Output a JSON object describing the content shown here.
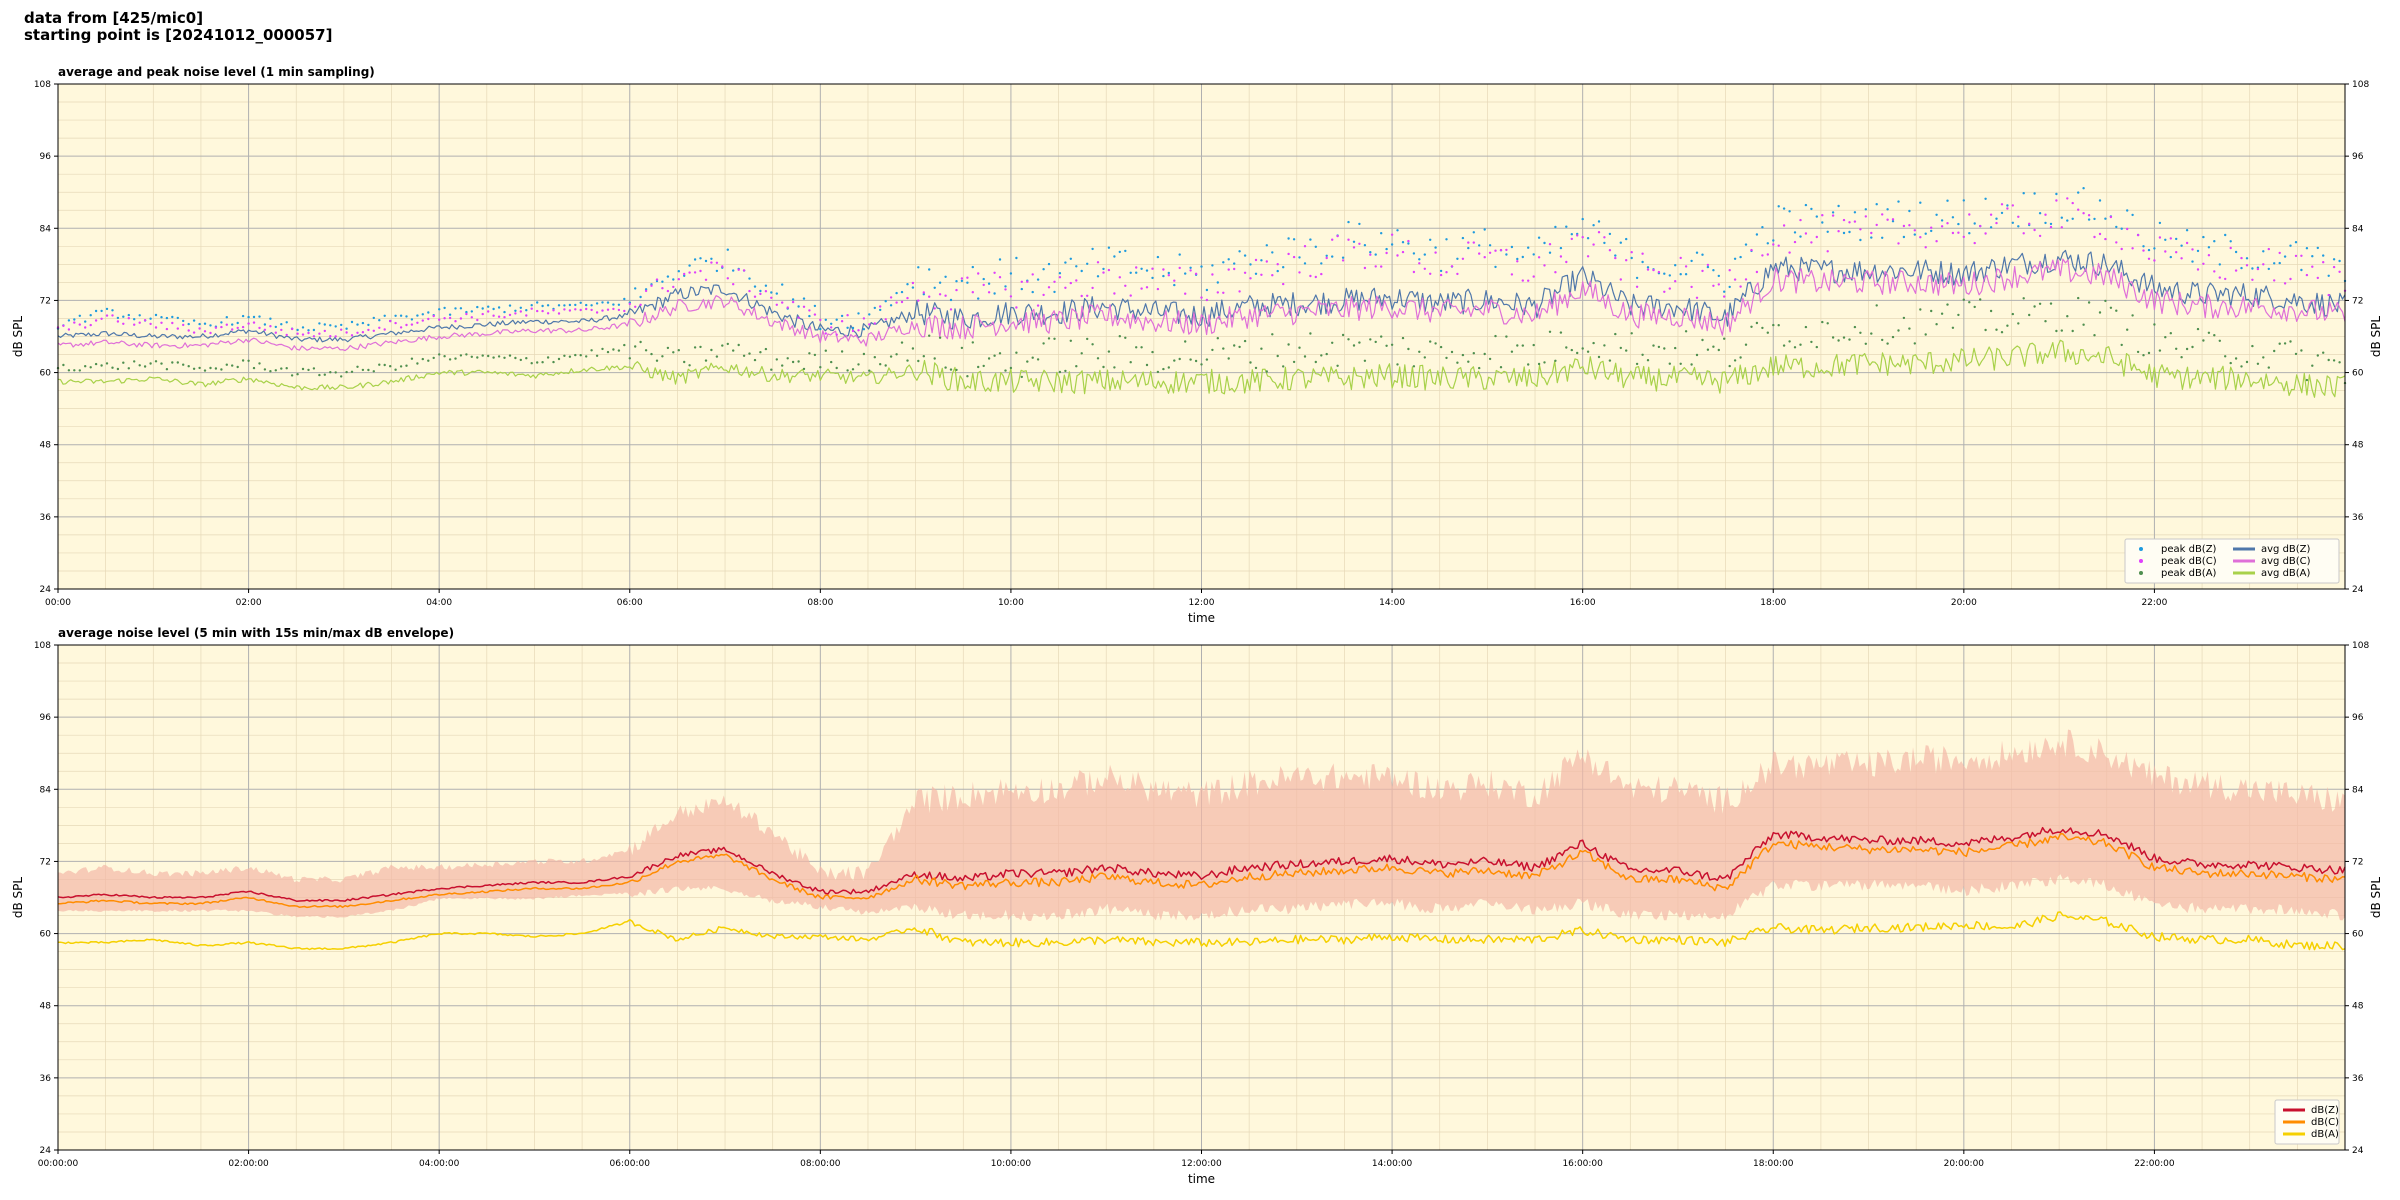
{
  "header": {
    "line1": "data from [425/mic0]",
    "line2": "starting point is [20241012_000057]"
  },
  "colors": {
    "plot_bg": "#fff8dc",
    "major_grid": "#b0b0b0",
    "minor_grid": "#e6d9b8",
    "peak_z": "#1f9bde",
    "peak_c": "#e040fb",
    "peak_a": "#4f8f4f",
    "avg_z": "#4f77aa",
    "avg_c": "#df6fd8",
    "avg_a": "#a8d14a",
    "envelope": "#f3b8a6",
    "db_z": "#c8102e",
    "db_c": "#ff8c00",
    "db_a": "#f5d000"
  },
  "chart_data": [
    {
      "type": "line",
      "title": "average and peak noise level (1 min sampling)",
      "xlabel": "time",
      "ylabel": "dB SPL",
      "ylim": [
        24,
        108
      ],
      "xlim_hours": [
        0,
        24
      ],
      "yticks": [
        24,
        36,
        48,
        60,
        72,
        84,
        96,
        108
      ],
      "xtick_labels": [
        "00:00",
        "02:00",
        "04:00",
        "06:00",
        "08:00",
        "10:00",
        "12:00",
        "14:00",
        "16:00",
        "18:00",
        "20:00",
        "22:00"
      ],
      "grid": true,
      "legend_position": "lower-right",
      "legend": [
        {
          "label": "peak dB(Z)",
          "kind": "dot",
          "color_key": "peak_z"
        },
        {
          "label": "peak dB(C)",
          "kind": "dot",
          "color_key": "peak_c"
        },
        {
          "label": "peak dB(A)",
          "kind": "dot",
          "color_key": "peak_a"
        },
        {
          "label": "avg dB(Z)",
          "kind": "line",
          "color_key": "avg_z"
        },
        {
          "label": "avg dB(C)",
          "kind": "line",
          "color_key": "avg_c"
        },
        {
          "label": "avg dB(A)",
          "kind": "line",
          "color_key": "avg_a"
        }
      ],
      "x_hours": [
        0,
        0.5,
        1,
        1.5,
        2,
        2.5,
        3,
        3.5,
        4,
        4.5,
        5,
        5.5,
        6,
        6.5,
        7,
        7.5,
        8,
        8.5,
        9,
        9.5,
        10,
        10.5,
        11,
        11.5,
        12,
        12.5,
        13,
        13.5,
        14,
        14.5,
        15,
        15.5,
        16,
        16.5,
        17,
        17.5,
        18,
        18.5,
        19,
        19.5,
        20,
        20.5,
        21,
        21.5,
        22,
        22.5,
        23,
        23.5,
        24
      ],
      "series": [
        {
          "name": "avg dB(Z)",
          "color_key": "avg_z",
          "style": "line",
          "values": [
            66,
            66.5,
            66,
            66,
            67,
            65.5,
            65.5,
            66.5,
            67.5,
            68,
            68.5,
            68.5,
            69.5,
            73,
            74,
            70,
            67,
            67,
            70,
            69,
            70,
            70,
            71,
            70,
            69.5,
            71,
            71.5,
            72,
            72.5,
            71.5,
            72,
            71,
            76,
            71,
            71,
            69,
            77.5,
            77,
            77,
            77,
            76.5,
            78,
            79,
            78,
            74,
            73,
            73,
            72,
            71
          ]
        },
        {
          "name": "avg dB(C)",
          "color_key": "avg_c",
          "style": "line",
          "values": [
            64.5,
            65,
            64.5,
            64.5,
            65.5,
            64,
            64,
            65,
            66,
            66.5,
            67,
            67,
            68,
            71,
            72,
            68.5,
            66,
            65.5,
            68,
            67.5,
            68.5,
            68.5,
            69.5,
            68.5,
            68,
            69.5,
            70,
            70.5,
            71,
            70,
            70.5,
            69.5,
            74,
            69.5,
            69.5,
            68,
            75.5,
            75,
            75,
            75,
            74.5,
            76,
            77,
            76,
            72,
            71,
            71,
            70.5,
            69.5
          ]
        },
        {
          "name": "avg dB(A)",
          "color_key": "avg_a",
          "style": "line",
          "values": [
            58.5,
            58.5,
            59,
            58,
            59,
            57.5,
            57.5,
            58.5,
            60,
            60,
            59.5,
            60.5,
            61,
            59,
            61,
            59.5,
            59.5,
            59,
            60.5,
            58.5,
            58.5,
            58.5,
            58.5,
            58.5,
            58.5,
            58.5,
            59,
            59,
            59.5,
            59,
            59,
            59,
            61,
            59,
            59,
            58.5,
            61,
            61,
            61.5,
            61.5,
            62,
            62.5,
            63.5,
            62.5,
            59.5,
            59,
            59,
            58,
            57.5
          ]
        },
        {
          "name": "peak dB(Z)",
          "color_key": "peak_z",
          "style": "dots",
          "values": [
            68,
            70,
            69,
            68,
            69,
            67.5,
            67.5,
            69,
            70,
            70.5,
            71,
            71,
            72,
            77,
            79,
            74,
            69,
            69,
            76,
            75,
            76,
            76,
            78,
            77,
            76,
            79,
            80,
            82,
            82,
            80,
            81,
            79,
            84,
            79,
            78,
            76,
            85,
            85,
            85,
            86,
            86,
            87,
            88,
            87,
            82,
            80,
            80,
            79,
            77
          ]
        },
        {
          "name": "peak dB(C)",
          "color_key": "peak_c",
          "style": "dots",
          "values": [
            67,
            69,
            68,
            67,
            68,
            66.5,
            66.5,
            68,
            69,
            69.5,
            70,
            70,
            71,
            76,
            77,
            72.5,
            68,
            68,
            74,
            73,
            74,
            74,
            76,
            75,
            74,
            77,
            78,
            80,
            80,
            78,
            79,
            77,
            82,
            77,
            76,
            74,
            83,
            83,
            83,
            84,
            84,
            85,
            86,
            85,
            80,
            78,
            78,
            77,
            75
          ]
        },
        {
          "name": "peak dB(A)",
          "color_key": "peak_a",
          "style": "dots",
          "values": [
            61,
            61,
            61.5,
            60.5,
            61.5,
            60,
            60,
            61,
            62.5,
            62.5,
            62,
            63,
            64,
            62,
            64,
            62,
            62,
            62,
            64,
            62,
            62,
            63,
            63,
            63,
            63,
            63,
            64,
            64,
            64,
            63,
            64,
            63,
            66,
            64,
            64,
            63,
            67,
            67,
            68,
            68,
            69,
            69,
            70,
            69,
            65,
            64,
            64,
            62,
            61
          ]
        }
      ]
    },
    {
      "type": "line",
      "title": "average noise level (5 min with 15s min/max dB envelope)",
      "xlabel": "time",
      "ylabel": "dB SPL",
      "ylim": [
        24,
        108
      ],
      "xlim_hours": [
        0,
        24
      ],
      "yticks": [
        24,
        36,
        48,
        60,
        72,
        84,
        96,
        108
      ],
      "xtick_labels": [
        "00:00:00",
        "02:00:00",
        "04:00:00",
        "06:00:00",
        "08:00:00",
        "10:00:00",
        "12:00:00",
        "14:00:00",
        "16:00:00",
        "18:00:00",
        "20:00:00",
        "22:00:00"
      ],
      "grid": true,
      "legend_position": "lower-right",
      "legend": [
        {
          "label": "dB(Z)",
          "kind": "line",
          "color_key": "db_z"
        },
        {
          "label": "dB(C)",
          "kind": "line",
          "color_key": "db_c"
        },
        {
          "label": "dB(A)",
          "kind": "line",
          "color_key": "db_a"
        }
      ],
      "x_hours": [
        0,
        0.5,
        1,
        1.5,
        2,
        2.5,
        3,
        3.5,
        4,
        4.5,
        5,
        5.5,
        6,
        6.5,
        7,
        7.5,
        8,
        8.5,
        9,
        9.5,
        10,
        10.5,
        11,
        11.5,
        12,
        12.5,
        13,
        13.5,
        14,
        14.5,
        15,
        15.5,
        16,
        16.5,
        17,
        17.5,
        18,
        18.5,
        19,
        19.5,
        20,
        20.5,
        21,
        21.5,
        22,
        22.5,
        23,
        23.5,
        24
      ],
      "envelope": {
        "name": "min/max envelope",
        "color_key": "envelope",
        "upper": [
          70,
          71,
          70,
          70,
          71,
          69,
          69,
          71,
          71,
          71.5,
          72,
          72,
          74,
          80,
          82,
          77,
          70,
          70,
          82,
          83,
          84,
          84,
          86,
          84,
          83,
          85,
          86,
          86,
          86,
          84,
          85,
          83,
          90,
          84,
          84,
          82,
          88,
          88,
          88,
          89,
          89,
          90,
          92,
          90,
          86,
          85,
          84,
          83,
          82
        ],
        "lower": [
          64,
          64,
          64,
          64,
          64,
          63,
          63,
          64,
          66,
          66,
          66,
          66.5,
          67,
          68,
          68,
          66,
          65,
          64,
          65,
          64,
          64,
          64,
          65,
          64,
          64,
          65,
          65,
          66,
          66,
          65,
          66,
          65,
          66,
          64,
          64,
          64,
          69,
          69,
          69,
          69,
          68,
          69,
          70,
          69,
          66,
          65,
          65,
          65,
          64
        ]
      },
      "series": [
        {
          "name": "dB(Z)",
          "color_key": "db_z",
          "style": "line",
          "values": [
            66,
            66.5,
            66,
            66,
            67,
            65.5,
            65.5,
            66.5,
            67.5,
            68,
            68.5,
            68.5,
            69.5,
            73,
            74,
            70,
            67,
            67,
            70,
            69,
            70,
            70,
            71,
            70,
            69.5,
            71,
            71.5,
            72,
            72.5,
            71.5,
            72,
            71,
            75,
            70.5,
            70.5,
            69,
            76.5,
            76,
            75.5,
            75.5,
            75,
            76,
            77.5,
            76.5,
            72.5,
            71.5,
            71.5,
            71,
            70.5
          ]
        },
        {
          "name": "dB(C)",
          "color_key": "db_c",
          "style": "line",
          "values": [
            65,
            65.5,
            65,
            65,
            66,
            64.5,
            64.5,
            65.5,
            66.5,
            67,
            67.5,
            67.5,
            68.5,
            72,
            73,
            69,
            66,
            66,
            69,
            68,
            68.5,
            68.5,
            69.5,
            68.5,
            68,
            69.5,
            70,
            70.5,
            71,
            70,
            70.5,
            69.5,
            73.5,
            69,
            69,
            67.5,
            75,
            74.5,
            74,
            74,
            73.5,
            74.5,
            76,
            75,
            71,
            70,
            70,
            69.5,
            69
          ]
        },
        {
          "name": "dB(A)",
          "color_key": "db_a",
          "style": "line",
          "values": [
            58.5,
            58.5,
            59,
            58,
            58.5,
            57.5,
            57.5,
            58.5,
            60,
            60,
            59.5,
            60,
            62,
            59,
            61,
            59.5,
            59.5,
            59,
            61,
            58.5,
            58.5,
            58.5,
            59,
            58.5,
            58.5,
            58.5,
            59,
            59,
            59.5,
            59,
            59,
            59,
            60.5,
            59,
            59,
            58.5,
            61,
            60.5,
            61,
            61,
            61.5,
            61,
            63,
            62,
            59.5,
            59,
            59,
            58,
            58
          ]
        }
      ]
    }
  ]
}
